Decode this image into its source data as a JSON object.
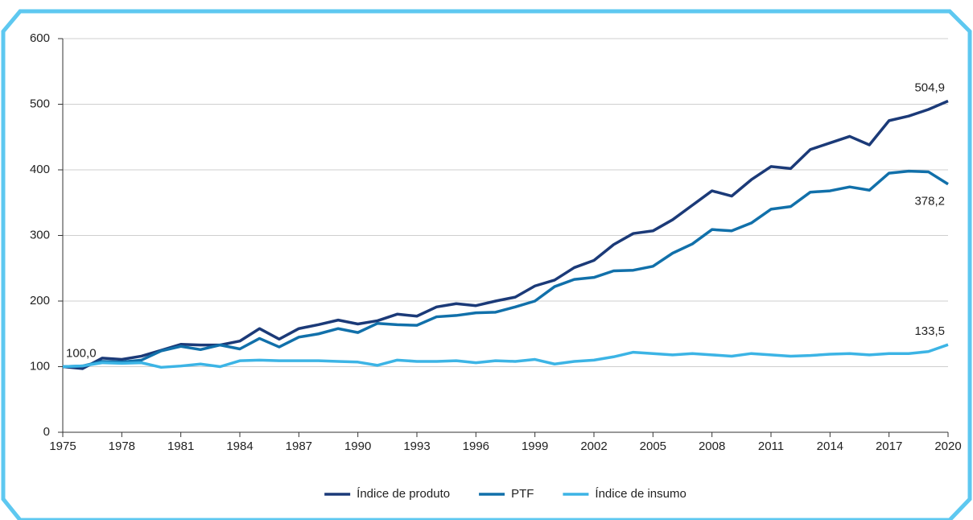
{
  "chart_data": {
    "type": "line",
    "x": [
      1975,
      1976,
      1977,
      1978,
      1979,
      1980,
      1981,
      1982,
      1983,
      1984,
      1985,
      1986,
      1987,
      1988,
      1989,
      1990,
      1991,
      1992,
      1993,
      1994,
      1995,
      1996,
      1997,
      1998,
      1999,
      2000,
      2001,
      2002,
      2003,
      2004,
      2005,
      2006,
      2007,
      2008,
      2009,
      2010,
      2011,
      2012,
      2013,
      2014,
      2015,
      2016,
      2017,
      2018,
      2019,
      2020
    ],
    "xlim": [
      1975,
      2020
    ],
    "xticks": [
      1975,
      1978,
      1981,
      1984,
      1987,
      1990,
      1993,
      1996,
      1999,
      2002,
      2005,
      2008,
      2011,
      2014,
      2017,
      2020
    ],
    "ylim": [
      0,
      600
    ],
    "yticks": [
      0,
      100,
      200,
      300,
      400,
      500,
      600
    ],
    "grid": true,
    "legend": "bottom",
    "series": [
      {
        "name": "Índice de produto",
        "color": "#1b3a78",
        "values": [
          100,
          97,
          113,
          111,
          116,
          125,
          134,
          133,
          133,
          139,
          158,
          142,
          158,
          164,
          171,
          165,
          170,
          180,
          177,
          191,
          196,
          193,
          200,
          206,
          223,
          232,
          251,
          262,
          286,
          303,
          307,
          324,
          346,
          368,
          360,
          385,
          405,
          402,
          431,
          441,
          451,
          438,
          475,
          482,
          492,
          504.9
        ],
        "value_labels": [
          "100,0",
          null,
          null,
          null,
          null,
          null,
          null,
          null,
          null,
          null,
          null,
          null,
          null,
          null,
          null,
          null,
          null,
          null,
          null,
          null,
          null,
          null,
          null,
          null,
          null,
          null,
          null,
          null,
          null,
          null,
          null,
          null,
          null,
          null,
          null,
          null,
          null,
          null,
          null,
          null,
          null,
          null,
          null,
          null,
          null,
          "504,9"
        ]
      },
      {
        "name": "PTF",
        "color": "#1170aa",
        "values": [
          100,
          101,
          108,
          107,
          110,
          124,
          131,
          126,
          133,
          127,
          143,
          130,
          145,
          150,
          158,
          152,
          166,
          164,
          163,
          176,
          178,
          182,
          183,
          191,
          200,
          222,
          233,
          236,
          246,
          247,
          253,
          273,
          287,
          309,
          307,
          319,
          340,
          344,
          366,
          368,
          374,
          369,
          395,
          398,
          397,
          378.2
        ],
        "value_labels": [
          null,
          null,
          null,
          null,
          null,
          null,
          null,
          null,
          null,
          null,
          null,
          null,
          null,
          null,
          null,
          null,
          null,
          null,
          null,
          null,
          null,
          null,
          null,
          null,
          null,
          null,
          null,
          null,
          null,
          null,
          null,
          null,
          null,
          null,
          null,
          null,
          null,
          null,
          null,
          null,
          null,
          null,
          null,
          null,
          null,
          "378,2"
        ]
      },
      {
        "name": "Índice de insumo",
        "color": "#3cb4e5",
        "values": [
          100,
          101,
          106,
          105,
          106,
          99,
          101,
          104,
          100,
          109,
          110,
          109,
          109,
          109,
          108,
          107,
          102,
          110,
          108,
          108,
          109,
          106,
          109,
          108,
          111,
          104,
          108,
          110,
          115,
          122,
          120,
          118,
          120,
          118,
          116,
          120,
          118,
          116,
          117,
          119,
          120,
          118,
          120,
          120,
          123,
          133.5
        ],
        "value_labels": [
          null,
          null,
          null,
          null,
          null,
          null,
          null,
          null,
          null,
          null,
          null,
          null,
          null,
          null,
          null,
          null,
          null,
          null,
          null,
          null,
          null,
          null,
          null,
          null,
          null,
          null,
          null,
          null,
          null,
          null,
          null,
          null,
          null,
          null,
          null,
          null,
          null,
          null,
          null,
          null,
          null,
          null,
          null,
          null,
          null,
          "133,5"
        ]
      }
    ]
  }
}
